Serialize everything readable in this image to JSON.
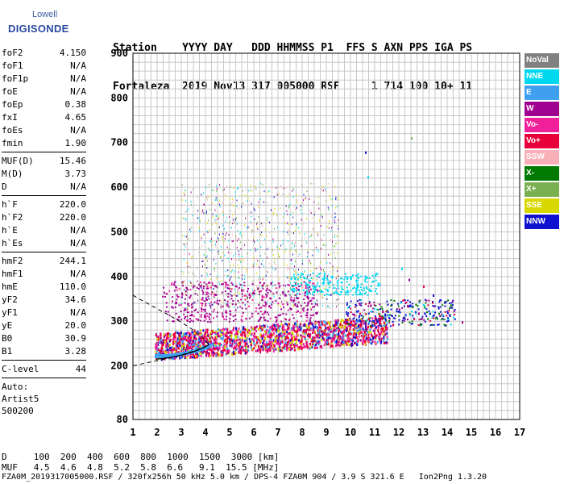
{
  "logo": {
    "line1": "Lowell",
    "line2": "DIGISONDE"
  },
  "header": {
    "labels": "Station    YYYY DAY   DDD HHMMSS P1  FFS S AXN PPS IGA PS",
    "values": "Fortaleza  2019 Nov13 317 005000 RSF     1 714 100 10+ 11"
  },
  "params": {
    "group1": [
      {
        "name": "foF2",
        "value": "4.150"
      },
      {
        "name": "foF1",
        "value": "N/A"
      },
      {
        "name": "foF1p",
        "value": "N/A"
      },
      {
        "name": "foE",
        "value": "N/A"
      },
      {
        "name": "foEp",
        "value": "0.38"
      },
      {
        "name": "fxI",
        "value": "4.65"
      },
      {
        "name": "foEs",
        "value": "N/A"
      },
      {
        "name": "fmin",
        "value": "1.90"
      }
    ],
    "group2": [
      {
        "name": "MUF(D)",
        "value": "15.46"
      },
      {
        "name": "M(D)",
        "value": "3.73"
      },
      {
        "name": "D",
        "value": "N/A"
      }
    ],
    "group3": [
      {
        "name": "h`F",
        "value": "220.0"
      },
      {
        "name": "h`F2",
        "value": "220.0"
      },
      {
        "name": "h`E",
        "value": "N/A"
      },
      {
        "name": "h`Es",
        "value": "N/A"
      }
    ],
    "group4": [
      {
        "name": "hmF2",
        "value": "244.1"
      },
      {
        "name": "hmF1",
        "value": "N/A"
      },
      {
        "name": "hmE",
        "value": "110.0"
      },
      {
        "name": "yF2",
        "value": "34.6"
      },
      {
        "name": "yF1",
        "value": "N/A"
      },
      {
        "name": "yE",
        "value": "20.0"
      },
      {
        "name": "B0",
        "value": "30.9"
      },
      {
        "name": "B1",
        "value": "3.28"
      }
    ],
    "group5": [
      {
        "name": "C-level",
        "value": "44"
      }
    ],
    "auto": [
      "Auto:",
      "Artist5",
      "500200"
    ]
  },
  "legend": [
    {
      "label": "NoVal",
      "color": "#808080",
      "text": "#ffffff"
    },
    {
      "label": "NNE",
      "color": "#00d8f0",
      "text": "#ffffff"
    },
    {
      "label": "E",
      "color": "#3fa0f0",
      "text": "#ffffff"
    },
    {
      "label": "W",
      "color": "#a00090",
      "text": "#ffffff"
    },
    {
      "label": "Vo-",
      "color": "#f0209a",
      "text": "#ffffff"
    },
    {
      "label": "Vo+",
      "color": "#e8003a",
      "text": "#ffffff"
    },
    {
      "label": "SSW",
      "color": "#f8b0b8",
      "text": "#ffffff"
    },
    {
      "label": "X-",
      "color": "#007a00",
      "text": "#ffffff"
    },
    {
      "label": "X+",
      "color": "#7ab050",
      "text": "#ffffff"
    },
    {
      "label": "SSE",
      "color": "#d8d800",
      "text": "#ffffff"
    },
    {
      "label": "NNW",
      "color": "#1010d0",
      "text": "#ffffff"
    }
  ],
  "chart_data": {
    "type": "scatter",
    "xlim": [
      1,
      17
    ],
    "ylim": [
      80,
      900
    ],
    "x_ticks": [
      "1",
      "2",
      "3",
      "4",
      "5",
      "6",
      "7",
      "8",
      "9",
      "10",
      "11",
      "12",
      "13",
      "14",
      "15",
      "16",
      "17"
    ],
    "y_ticks": [
      "80",
      "200",
      "300",
      "400",
      "500",
      "600",
      "700",
      "800",
      "900"
    ],
    "grid": true
  },
  "bottom": {
    "d_line": "D     100  200  400  600  800  1000  1500  3000 [km]",
    "muf_line": "MUF   4.5  4.6  4.8  5.2  5.8  6.6   9.1  15.5 [MHz]",
    "file_line": "FZA0M_2019317005000.RSF / 320fx256h 50 kHz 5.0 km / DPS-4 FZA0M 904 / 3.9 S 321.6 E   Ion2Png 1.3.20"
  }
}
